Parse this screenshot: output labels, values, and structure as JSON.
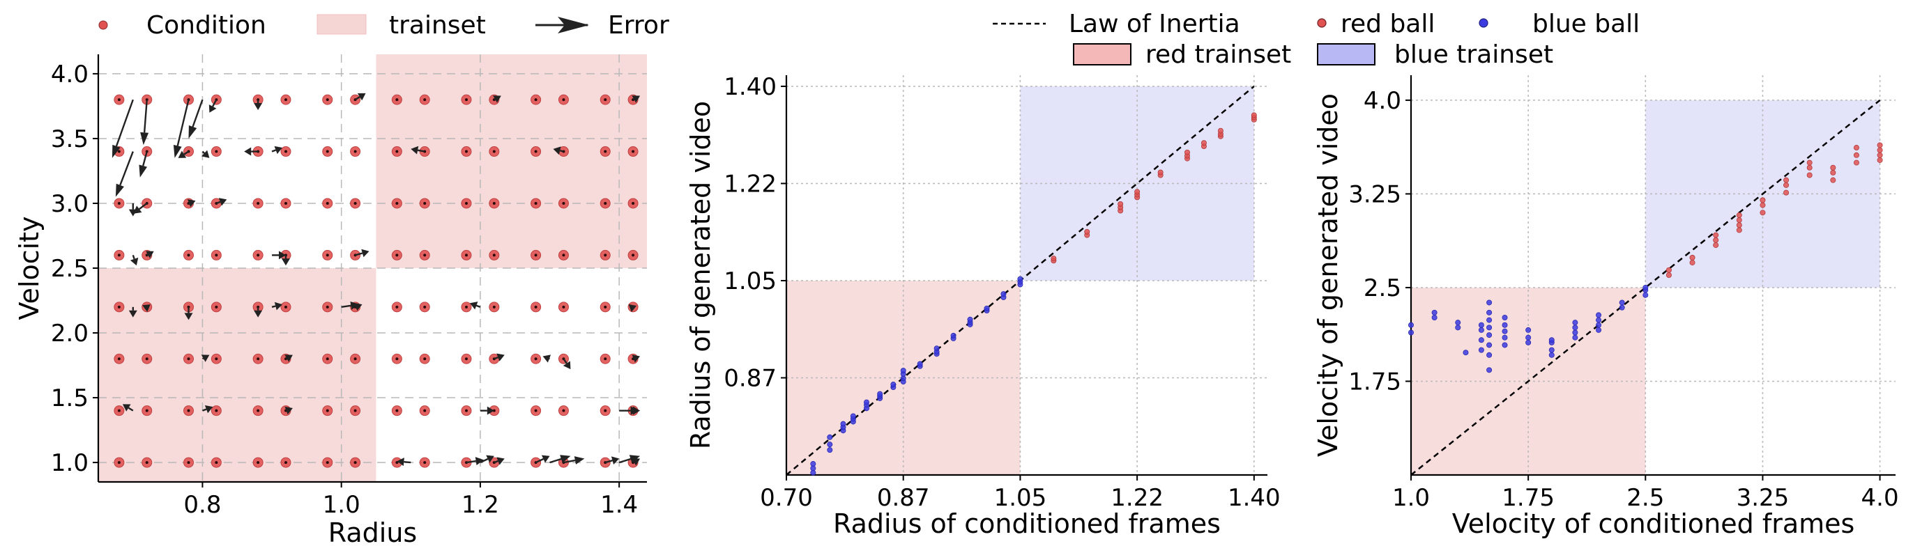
{
  "colors": {
    "red_ball": "#e05252",
    "red_ball_edge": "#8a2a2a",
    "blue_ball": "#3b3be0",
    "red_trainset": "#f6d5d5",
    "blue_trainset": "#dcdcf7",
    "arrow": "#222222",
    "diagonal": "#000000"
  },
  "chart_data": [
    {
      "type": "scatter",
      "subtype": "arrow-field",
      "title": "",
      "xlabel": "Radius",
      "ylabel": "Velocity",
      "xlim": [
        0.65,
        1.44
      ],
      "ylim": [
        0.85,
        4.15
      ],
      "xticks": [
        0.8,
        1.0,
        1.2,
        1.4
      ],
      "xtick_labels": [
        "0.8",
        "1.0",
        "1.2",
        "1.4"
      ],
      "yticks": [
        1.0,
        1.5,
        2.0,
        2.5,
        3.0,
        3.5,
        4.0
      ],
      "ytick_labels": [
        "1.0",
        "1.5",
        "2.0",
        "2.5",
        "3.0",
        "3.5",
        "4.0"
      ],
      "grid": true,
      "legend": {
        "placement": "top",
        "entries": [
          "Condition",
          "trainset",
          "Error"
        ]
      },
      "trainset_regions": [
        {
          "x": [
            0.65,
            1.05
          ],
          "y": [
            0.85,
            2.5
          ]
        },
        {
          "x": [
            1.05,
            1.44
          ],
          "y": [
            2.5,
            4.15
          ]
        }
      ],
      "radius_groups": [
        0.7,
        0.8,
        0.9,
        1.0,
        1.1,
        1.2,
        1.3,
        1.4
      ],
      "radius_offsets": [
        -0.02,
        0.02
      ],
      "velocities": [
        1.0,
        1.4,
        1.8,
        2.2,
        2.6,
        3.0,
        3.4,
        3.8
      ],
      "errors": [
        {
          "r": 0.7,
          "v": 3.8,
          "dr": -0.03,
          "dv": -0.45
        },
        {
          "r": 0.72,
          "v": 3.8,
          "dr": -0.005,
          "dv": -0.35
        },
        {
          "r": 0.7,
          "v": 3.4,
          "dr": -0.025,
          "dv": -0.35
        },
        {
          "r": 0.72,
          "v": 3.4,
          "dr": -0.01,
          "dv": -0.2
        },
        {
          "r": 0.7,
          "v": 3.0,
          "dr": 0.0,
          "dv": -0.1
        },
        {
          "r": 0.72,
          "v": 3.0,
          "dr": -0.02,
          "dv": -0.08
        },
        {
          "r": 0.7,
          "v": 2.6,
          "dr": 0.005,
          "dv": -0.08
        },
        {
          "r": 0.72,
          "v": 2.6,
          "dr": 0.01,
          "dv": 0.03
        },
        {
          "r": 0.78,
          "v": 3.8,
          "dr": -0.02,
          "dv": -0.45
        },
        {
          "r": 0.8,
          "v": 3.8,
          "dr": -0.02,
          "dv": -0.3
        },
        {
          "r": 0.82,
          "v": 3.8,
          "dr": -0.01,
          "dv": -0.1
        },
        {
          "r": 0.78,
          "v": 3.4,
          "dr": -0.015,
          "dv": -0.05
        },
        {
          "r": 0.8,
          "v": 3.4,
          "dr": 0.01,
          "dv": -0.05
        },
        {
          "r": 0.78,
          "v": 3.0,
          "dr": 0.01,
          "dv": 0.02
        },
        {
          "r": 0.82,
          "v": 3.0,
          "dr": 0.015,
          "dv": 0.03
        },
        {
          "r": 0.88,
          "v": 3.8,
          "dr": 0.0,
          "dv": -0.08
        },
        {
          "r": 0.88,
          "v": 3.4,
          "dr": -0.02,
          "dv": 0.0
        },
        {
          "r": 0.9,
          "v": 3.4,
          "dr": 0.015,
          "dv": 0.03
        },
        {
          "r": 0.9,
          "v": 2.6,
          "dr": 0.02,
          "dv": 0.0
        },
        {
          "r": 0.92,
          "v": 2.6,
          "dr": 0.0,
          "dv": -0.08
        },
        {
          "r": 1.02,
          "v": 3.8,
          "dr": 0.015,
          "dv": 0.05
        },
        {
          "r": 1.02,
          "v": 2.6,
          "dr": 0.02,
          "dv": 0.03
        },
        {
          "r": 0.7,
          "v": 2.2,
          "dr": 0.0,
          "dv": -0.08
        },
        {
          "r": 0.72,
          "v": 2.2,
          "dr": 0.005,
          "dv": 0.02
        },
        {
          "r": 0.78,
          "v": 2.2,
          "dr": 0.0,
          "dv": -0.1
        },
        {
          "r": 0.9,
          "v": 2.2,
          "dr": 0.015,
          "dv": 0.02
        },
        {
          "r": 0.88,
          "v": 2.2,
          "dr": 0.0,
          "dv": -0.08
        },
        {
          "r": 1.0,
          "v": 2.2,
          "dr": 0.025,
          "dv": 0.02
        },
        {
          "r": 1.02,
          "v": 2.2,
          "dr": 0.01,
          "dv": 0.02
        },
        {
          "r": 0.8,
          "v": 1.8,
          "dr": 0.01,
          "dv": 0.03
        },
        {
          "r": 0.92,
          "v": 1.8,
          "dr": 0.01,
          "dv": 0.03
        },
        {
          "r": 0.8,
          "v": 1.4,
          "dr": 0.015,
          "dv": 0.03
        },
        {
          "r": 0.7,
          "v": 1.4,
          "dr": -0.015,
          "dv": 0.05
        },
        {
          "r": 0.92,
          "v": 1.4,
          "dr": 0.01,
          "dv": 0.02
        },
        {
          "r": 1.12,
          "v": 3.4,
          "dr": -0.02,
          "dv": 0.02
        },
        {
          "r": 1.22,
          "v": 3.8,
          "dr": 0.01,
          "dv": 0.03
        },
        {
          "r": 1.32,
          "v": 3.4,
          "dr": -0.015,
          "dv": 0.02
        },
        {
          "r": 1.42,
          "v": 3.8,
          "dr": 0.01,
          "dv": 0.03
        },
        {
          "r": 1.2,
          "v": 2.2,
          "dr": -0.015,
          "dv": 0.03
        },
        {
          "r": 1.22,
          "v": 1.8,
          "dr": 0.015,
          "dv": 0.03
        },
        {
          "r": 1.3,
          "v": 1.8,
          "dr": -0.01,
          "dv": 0.02
        },
        {
          "r": 1.32,
          "v": 1.8,
          "dr": 0.01,
          "dv": -0.08
        },
        {
          "r": 1.42,
          "v": 1.8,
          "dr": 0.01,
          "dv": 0.02
        },
        {
          "r": 1.42,
          "v": 2.2,
          "dr": 0.005,
          "dv": 0.01
        },
        {
          "r": 1.2,
          "v": 1.4,
          "dr": 0.02,
          "dv": 0.0
        },
        {
          "r": 1.4,
          "v": 1.4,
          "dr": 0.03,
          "dv": 0.0
        },
        {
          "r": 1.42,
          "v": 1.4,
          "dr": 0.01,
          "dv": 0.0
        },
        {
          "r": 1.1,
          "v": 1.0,
          "dr": -0.02,
          "dv": 0.01
        },
        {
          "r": 1.18,
          "v": 1.0,
          "dr": 0.025,
          "dv": 0.02
        },
        {
          "r": 1.2,
          "v": 1.0,
          "dr": 0.02,
          "dv": 0.05
        },
        {
          "r": 1.22,
          "v": 1.0,
          "dr": 0.015,
          "dv": 0.03
        },
        {
          "r": 1.28,
          "v": 1.0,
          "dr": 0.02,
          "dv": 0.05
        },
        {
          "r": 1.3,
          "v": 1.0,
          "dr": 0.03,
          "dv": 0.05
        },
        {
          "r": 1.32,
          "v": 1.0,
          "dr": 0.03,
          "dv": 0.03
        },
        {
          "r": 1.38,
          "v": 1.0,
          "dr": 0.02,
          "dv": 0.03
        },
        {
          "r": 1.4,
          "v": 1.0,
          "dr": 0.03,
          "dv": 0.05
        },
        {
          "r": 1.42,
          "v": 1.0,
          "dr": 0.01,
          "dv": 0.03
        }
      ]
    },
    {
      "type": "scatter",
      "title": "",
      "xlabel": "Radius of conditioned frames",
      "ylabel": "Radius of generated video",
      "xlim": [
        0.7,
        1.42
      ],
      "ylim": [
        0.7,
        1.42
      ],
      "xticks": [
        0.7,
        0.875,
        1.05,
        1.225,
        1.4
      ],
      "xtick_labels": [
        "0.70",
        "0.87",
        "1.05",
        "1.22",
        "1.40"
      ],
      "yticks": [
        0.875,
        1.05,
        1.225,
        1.4
      ],
      "ytick_labels": [
        "0.87",
        "1.05",
        "1.22",
        "1.40"
      ],
      "grid": true,
      "diagonal": {
        "from": [
          0.7,
          0.7
        ],
        "to": [
          1.4,
          1.4
        ]
      },
      "regions": [
        {
          "series": "red trainset",
          "x": [
            0.7,
            1.05
          ],
          "y": [
            0.7,
            1.05
          ]
        },
        {
          "series": "blue trainset",
          "x": [
            1.05,
            1.4
          ],
          "y": [
            1.05,
            1.4
          ]
        }
      ],
      "series": [
        {
          "name": "blue ball",
          "points": [
            [
              0.74,
              0.704
            ],
            [
              0.74,
              0.712
            ],
            [
              0.74,
              0.72
            ],
            [
              0.765,
              0.745
            ],
            [
              0.765,
              0.755
            ],
            [
              0.765,
              0.768
            ],
            [
              0.785,
              0.78
            ],
            [
              0.785,
              0.786
            ],
            [
              0.785,
              0.792
            ],
            [
              0.8,
              0.796
            ],
            [
              0.8,
              0.801
            ],
            [
              0.8,
              0.806
            ],
            [
              0.82,
              0.82
            ],
            [
              0.82,
              0.826
            ],
            [
              0.82,
              0.831
            ],
            [
              0.84,
              0.838
            ],
            [
              0.84,
              0.842
            ],
            [
              0.84,
              0.846
            ],
            [
              0.86,
              0.858
            ],
            [
              0.86,
              0.863
            ],
            [
              0.875,
              0.868
            ],
            [
              0.875,
              0.874
            ],
            [
              0.875,
              0.882
            ],
            [
              0.875,
              0.888
            ],
            [
              0.9,
              0.896
            ],
            [
              0.9,
              0.9
            ],
            [
              0.925,
              0.918
            ],
            [
              0.925,
              0.922
            ],
            [
              0.925,
              0.928
            ],
            [
              0.95,
              0.946
            ],
            [
              0.95,
              0.951
            ],
            [
              0.975,
              0.971
            ],
            [
              0.975,
              0.975
            ],
            [
              0.975,
              0.98
            ],
            [
              1.0,
              0.996
            ],
            [
              1.0,
              1.0
            ],
            [
              1.025,
              1.02
            ],
            [
              1.025,
              1.026
            ],
            [
              1.05,
              1.043
            ],
            [
              1.05,
              1.048
            ],
            [
              1.05,
              1.053
            ]
          ]
        },
        {
          "name": "red ball",
          "points": [
            [
              1.1,
              1.086
            ],
            [
              1.1,
              1.09
            ],
            [
              1.15,
              1.132
            ],
            [
              1.15,
              1.138
            ],
            [
              1.2,
              1.176
            ],
            [
              1.2,
              1.182
            ],
            [
              1.2,
              1.188
            ],
            [
              1.225,
              1.2
            ],
            [
              1.225,
              1.205
            ],
            [
              1.225,
              1.21
            ],
            [
              1.26,
              1.24
            ],
            [
              1.26,
              1.245
            ],
            [
              1.3,
              1.27
            ],
            [
              1.3,
              1.275
            ],
            [
              1.3,
              1.281
            ],
            [
              1.325,
              1.292
            ],
            [
              1.325,
              1.298
            ],
            [
              1.35,
              1.31
            ],
            [
              1.35,
              1.314
            ],
            [
              1.35,
              1.32
            ],
            [
              1.4,
              1.34
            ],
            [
              1.4,
              1.344
            ],
            [
              1.4,
              1.348
            ]
          ]
        }
      ]
    },
    {
      "type": "scatter",
      "title": "",
      "xlabel": "Velocity of conditioned frames",
      "ylabel": "Velocity of generated video",
      "xlim": [
        1.0,
        4.1
      ],
      "ylim": [
        1.0,
        4.2
      ],
      "xticks": [
        1.0,
        1.75,
        2.5,
        3.25,
        4.0
      ],
      "xtick_labels": [
        "1.0",
        "1.75",
        "2.5",
        "3.25",
        "4.0"
      ],
      "yticks": [
        1.75,
        2.5,
        3.25,
        4.0
      ],
      "ytick_labels": [
        "1.75",
        "2.5",
        "3.25",
        "4.0"
      ],
      "grid": true,
      "diagonal": {
        "from": [
          1.0,
          1.0
        ],
        "to": [
          4.0,
          4.0
        ]
      },
      "regions": [
        {
          "series": "red trainset",
          "x": [
            1.0,
            2.5
          ],
          "y": [
            1.0,
            2.5
          ]
        },
        {
          "series": "blue trainset",
          "x": [
            2.5,
            4.0
          ],
          "y": [
            2.5,
            4.0
          ]
        }
      ],
      "series": [
        {
          "name": "blue ball",
          "points": [
            [
              1.0,
              2.14
            ],
            [
              1.0,
              2.2
            ],
            [
              1.15,
              2.26
            ],
            [
              1.15,
              2.3
            ],
            [
              1.3,
              2.18
            ],
            [
              1.3,
              2.22
            ],
            [
              1.35,
              1.98
            ],
            [
              1.45,
              2.0
            ],
            [
              1.45,
              2.08
            ],
            [
              1.45,
              2.16
            ],
            [
              1.45,
              2.2
            ],
            [
              1.5,
              1.84
            ],
            [
              1.5,
              1.96
            ],
            [
              1.5,
              2.04
            ],
            [
              1.5,
              2.12
            ],
            [
              1.5,
              2.18
            ],
            [
              1.5,
              2.24
            ],
            [
              1.5,
              2.3
            ],
            [
              1.5,
              2.38
            ],
            [
              1.6,
              2.04
            ],
            [
              1.6,
              2.1
            ],
            [
              1.6,
              2.15
            ],
            [
              1.6,
              2.2
            ],
            [
              1.6,
              2.26
            ],
            [
              1.75,
              2.06
            ],
            [
              1.75,
              2.1
            ],
            [
              1.75,
              2.16
            ],
            [
              1.9,
              1.96
            ],
            [
              1.9,
              2.0
            ],
            [
              1.9,
              2.06
            ],
            [
              1.9,
              2.08
            ],
            [
              2.05,
              2.1
            ],
            [
              2.05,
              2.14
            ],
            [
              2.05,
              2.18
            ],
            [
              2.05,
              2.22
            ],
            [
              2.2,
              2.16
            ],
            [
              2.2,
              2.2
            ],
            [
              2.2,
              2.24
            ],
            [
              2.2,
              2.28
            ],
            [
              2.35,
              2.34
            ],
            [
              2.35,
              2.38
            ],
            [
              2.5,
              2.44
            ],
            [
              2.5,
              2.48
            ],
            [
              2.5,
              2.5
            ]
          ]
        },
        {
          "name": "red ball",
          "points": [
            [
              2.65,
              2.6
            ],
            [
              2.65,
              2.64
            ],
            [
              2.8,
              2.7
            ],
            [
              2.8,
              2.74
            ],
            [
              2.95,
              2.84
            ],
            [
              2.95,
              2.88
            ],
            [
              2.95,
              2.92
            ],
            [
              3.1,
              2.96
            ],
            [
              3.1,
              3.0
            ],
            [
              3.1,
              3.04
            ],
            [
              3.1,
              3.08
            ],
            [
              3.25,
              3.1
            ],
            [
              3.25,
              3.16
            ],
            [
              3.25,
              3.2
            ],
            [
              3.4,
              3.26
            ],
            [
              3.4,
              3.32
            ],
            [
              3.4,
              3.36
            ],
            [
              3.55,
              3.4
            ],
            [
              3.55,
              3.46
            ],
            [
              3.55,
              3.5
            ],
            [
              3.7,
              3.36
            ],
            [
              3.7,
              3.42
            ],
            [
              3.7,
              3.46
            ],
            [
              3.85,
              3.5
            ],
            [
              3.85,
              3.56
            ],
            [
              3.85,
              3.62
            ],
            [
              4.0,
              3.52
            ],
            [
              4.0,
              3.56
            ],
            [
              4.0,
              3.6
            ],
            [
              4.0,
              3.64
            ]
          ]
        }
      ]
    }
  ]
}
